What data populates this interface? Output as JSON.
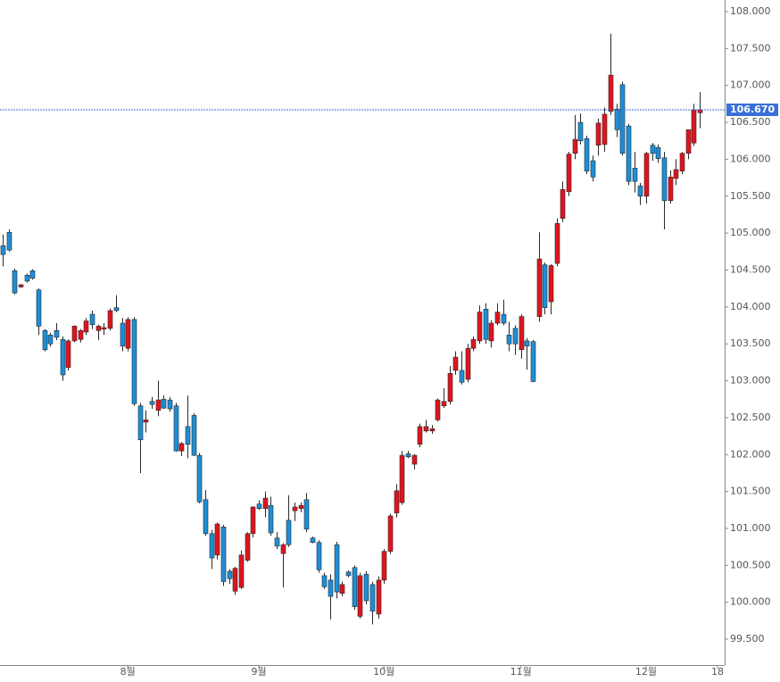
{
  "chart_data": {
    "type": "candlestick",
    "up_color": "#e0141e",
    "down_color": "#1c8fd8",
    "line_color": "#2a2a2a",
    "ylim": [
      99.15,
      108.157
    ],
    "xlim": [
      -0.45,
      121.2
    ],
    "yticks": [
      {
        "value": 99.5,
        "label": "99.500"
      },
      {
        "value": 100,
        "label": "100.000"
      },
      {
        "value": 100.5,
        "label": "100.500"
      },
      {
        "value": 101,
        "label": "101.000"
      },
      {
        "value": 101.5,
        "label": "101.500"
      },
      {
        "value": 102,
        "label": "102.000"
      },
      {
        "value": 102.5,
        "label": "102.500"
      },
      {
        "value": 103,
        "label": "103.000"
      },
      {
        "value": 103.5,
        "label": "103.500"
      },
      {
        "value": 104,
        "label": "104.000"
      },
      {
        "value": 104.5,
        "label": "104.500"
      },
      {
        "value": 105,
        "label": "105.000"
      },
      {
        "value": 105.5,
        "label": "105.500"
      },
      {
        "value": 106,
        "label": "106.000"
      },
      {
        "value": 106.5,
        "label": "106.500"
      },
      {
        "value": 107,
        "label": "107.000"
      },
      {
        "value": 107.5,
        "label": "107.500"
      },
      {
        "value": 108,
        "label": "108.000"
      }
    ],
    "xticks": [
      {
        "value": 21,
        "label": "8월"
      },
      {
        "value": 43,
        "label": "9월"
      },
      {
        "value": 64,
        "label": "10월"
      },
      {
        "value": 87,
        "label": "11월"
      },
      {
        "value": 108,
        "label": "12월"
      },
      {
        "value": 120,
        "label": "18"
      }
    ],
    "last_price": {
      "value": 106.67,
      "label": "106.670",
      "color": "#3a6fd8"
    },
    "ohlc": [
      [
        104.83,
        104.98,
        104.55,
        104.71
      ],
      [
        105.01,
        105.05,
        104.75,
        104.77
      ],
      [
        104.49,
        104.52,
        104.17,
        104.19
      ],
      [
        104.27,
        104.31,
        104.26,
        104.3
      ],
      [
        104.43,
        104.45,
        104.33,
        104.35
      ],
      [
        104.49,
        104.51,
        104.37,
        104.39
      ],
      [
        104.23,
        104.25,
        103.62,
        103.74
      ],
      [
        103.68,
        103.7,
        103.4,
        103.42
      ],
      [
        103.62,
        103.65,
        103.46,
        103.5
      ],
      [
        103.68,
        103.78,
        103.55,
        103.59
      ],
      [
        103.56,
        103.6,
        103.0,
        103.08
      ],
      [
        103.18,
        103.56,
        103.14,
        103.54
      ],
      [
        103.54,
        103.75,
        103.52,
        103.74
      ],
      [
        103.56,
        103.7,
        103.52,
        103.68
      ],
      [
        103.66,
        103.85,
        103.62,
        103.81
      ],
      [
        103.9,
        103.95,
        103.7,
        103.76
      ],
      [
        103.68,
        103.76,
        103.55,
        103.74
      ],
      [
        103.7,
        103.78,
        103.62,
        103.72
      ],
      [
        103.71,
        103.98,
        103.68,
        103.95
      ],
      [
        103.99,
        104.16,
        103.93,
        103.95
      ],
      [
        103.78,
        103.85,
        103.4,
        103.47
      ],
      [
        103.44,
        103.86,
        103.4,
        103.83
      ],
      [
        103.83,
        103.86,
        102.66,
        102.69
      ],
      [
        102.66,
        102.7,
        101.75,
        102.2
      ],
      [
        102.44,
        102.6,
        102.3,
        102.47
      ],
      [
        102.72,
        102.78,
        102.62,
        102.68
      ],
      [
        102.6,
        103.0,
        102.52,
        102.74
      ],
      [
        102.75,
        102.8,
        102.62,
        102.63
      ],
      [
        102.74,
        102.78,
        102.58,
        102.62
      ],
      [
        102.66,
        102.7,
        102.04,
        102.05
      ],
      [
        102.05,
        102.17,
        101.98,
        102.15
      ],
      [
        102.38,
        102.8,
        101.95,
        102.14
      ],
      [
        102.53,
        102.56,
        101.98,
        101.99
      ],
      [
        101.99,
        102.02,
        101.34,
        101.36
      ],
      [
        101.39,
        101.52,
        100.9,
        100.93
      ],
      [
        100.93,
        100.98,
        100.45,
        100.6
      ],
      [
        100.64,
        101.08,
        100.58,
        101.06
      ],
      [
        101.02,
        101.05,
        100.22,
        100.28
      ],
      [
        100.42,
        100.45,
        100.25,
        100.32
      ],
      [
        100.15,
        100.48,
        100.1,
        100.46
      ],
      [
        100.2,
        100.7,
        100.18,
        100.64
      ],
      [
        100.57,
        100.95,
        100.55,
        100.93
      ],
      [
        100.93,
        101.3,
        100.88,
        101.29
      ],
      [
        101.33,
        101.38,
        101.25,
        101.27
      ],
      [
        101.27,
        101.5,
        101.15,
        101.41
      ],
      [
        101.31,
        101.43,
        100.9,
        100.94
      ],
      [
        100.87,
        100.95,
        100.72,
        100.76
      ],
      [
        100.66,
        100.8,
        100.2,
        100.78
      ],
      [
        101.11,
        101.45,
        100.75,
        100.78
      ],
      [
        101.24,
        101.35,
        101.1,
        101.29
      ],
      [
        101.27,
        101.35,
        101.22,
        101.31
      ],
      [
        101.39,
        101.48,
        100.95,
        100.99
      ],
      [
        100.87,
        100.89,
        100.8,
        100.81
      ],
      [
        100.81,
        100.84,
        100.4,
        100.44
      ],
      [
        100.36,
        100.4,
        100.18,
        100.21
      ],
      [
        100.3,
        100.38,
        99.77,
        100.08
      ],
      [
        100.78,
        100.82,
        100.05,
        100.14
      ],
      [
        100.12,
        100.28,
        100.08,
        100.24
      ],
      [
        100.41,
        100.43,
        100.34,
        100.36
      ],
      [
        100.47,
        100.5,
        99.9,
        99.94
      ],
      [
        99.81,
        100.4,
        99.78,
        100.36
      ],
      [
        100.38,
        100.42,
        99.97,
        100.02
      ],
      [
        100.24,
        100.28,
        99.7,
        99.88
      ],
      [
        99.84,
        100.35,
        99.78,
        100.3
      ],
      [
        100.3,
        100.72,
        100.25,
        100.69
      ],
      [
        100.69,
        101.2,
        100.65,
        101.17
      ],
      [
        101.21,
        101.6,
        101.15,
        101.51
      ],
      [
        101.35,
        102.05,
        101.32,
        101.99
      ],
      [
        102.01,
        102.05,
        101.95,
        101.97
      ],
      [
        101.87,
        102.01,
        101.8,
        101.99
      ],
      [
        102.14,
        102.42,
        102.1,
        102.38
      ],
      [
        102.32,
        102.47,
        102.3,
        102.38
      ],
      [
        102.32,
        102.4,
        102.28,
        102.35
      ],
      [
        102.47,
        102.76,
        102.45,
        102.74
      ],
      [
        102.66,
        102.9,
        102.63,
        102.72
      ],
      [
        102.72,
        103.2,
        102.68,
        103.1
      ],
      [
        103.14,
        103.4,
        103.08,
        103.32
      ],
      [
        103.14,
        103.4,
        102.95,
        102.98
      ],
      [
        103.02,
        103.5,
        102.98,
        103.44
      ],
      [
        103.44,
        103.6,
        103.4,
        103.56
      ],
      [
        103.54,
        104.02,
        103.5,
        103.93
      ],
      [
        103.97,
        104.05,
        103.5,
        103.56
      ],
      [
        103.54,
        103.82,
        103.45,
        103.78
      ],
      [
        103.78,
        104.05,
        103.75,
        103.93
      ],
      [
        103.9,
        104.1,
        103.75,
        103.78
      ],
      [
        103.62,
        103.8,
        103.4,
        103.5
      ],
      [
        103.71,
        103.75,
        103.35,
        103.5
      ],
      [
        103.42,
        103.9,
        103.3,
        103.87
      ],
      [
        103.54,
        103.58,
        103.15,
        103.47
      ],
      [
        103.53,
        103.55,
        102.98,
        102.99
      ],
      [
        103.87,
        105.01,
        103.8,
        104.65
      ],
      [
        104.57,
        104.6,
        103.9,
        103.99
      ],
      [
        104.07,
        104.58,
        103.9,
        104.56
      ],
      [
        104.59,
        105.2,
        104.55,
        105.13
      ],
      [
        105.2,
        105.7,
        105.15,
        105.59
      ],
      [
        105.56,
        106.1,
        105.5,
        106.07
      ],
      [
        106.08,
        106.6,
        106.0,
        106.27
      ],
      [
        106.5,
        106.62,
        106.2,
        106.25
      ],
      [
        106.28,
        106.32,
        105.8,
        105.84
      ],
      [
        105.98,
        106.05,
        105.7,
        105.76
      ],
      [
        106.19,
        106.55,
        106.05,
        106.49
      ],
      [
        106.2,
        106.7,
        106.1,
        106.61
      ],
      [
        106.65,
        107.7,
        106.6,
        107.14
      ],
      [
        106.68,
        106.75,
        106.3,
        106.4
      ],
      [
        107.01,
        107.05,
        106.05,
        106.08
      ],
      [
        106.45,
        106.48,
        105.65,
        105.7
      ],
      [
        105.88,
        106.1,
        105.55,
        105.7
      ],
      [
        105.64,
        105.68,
        105.38,
        105.5
      ],
      [
        105.5,
        106.1,
        105.4,
        106.08
      ],
      [
        106.19,
        106.22,
        105.98,
        106.08
      ],
      [
        106.16,
        106.2,
        105.95,
        106.01
      ],
      [
        106.02,
        106.1,
        105.05,
        105.44
      ],
      [
        105.44,
        105.85,
        105.4,
        105.76
      ],
      [
        105.74,
        106.0,
        105.65,
        105.86
      ],
      [
        105.84,
        106.1,
        105.8,
        106.08
      ],
      [
        106.08,
        106.4,
        106.0,
        106.4
      ],
      [
        106.22,
        106.75,
        106.18,
        106.67
      ],
      [
        106.63,
        106.91,
        106.42,
        106.67
      ]
    ]
  }
}
